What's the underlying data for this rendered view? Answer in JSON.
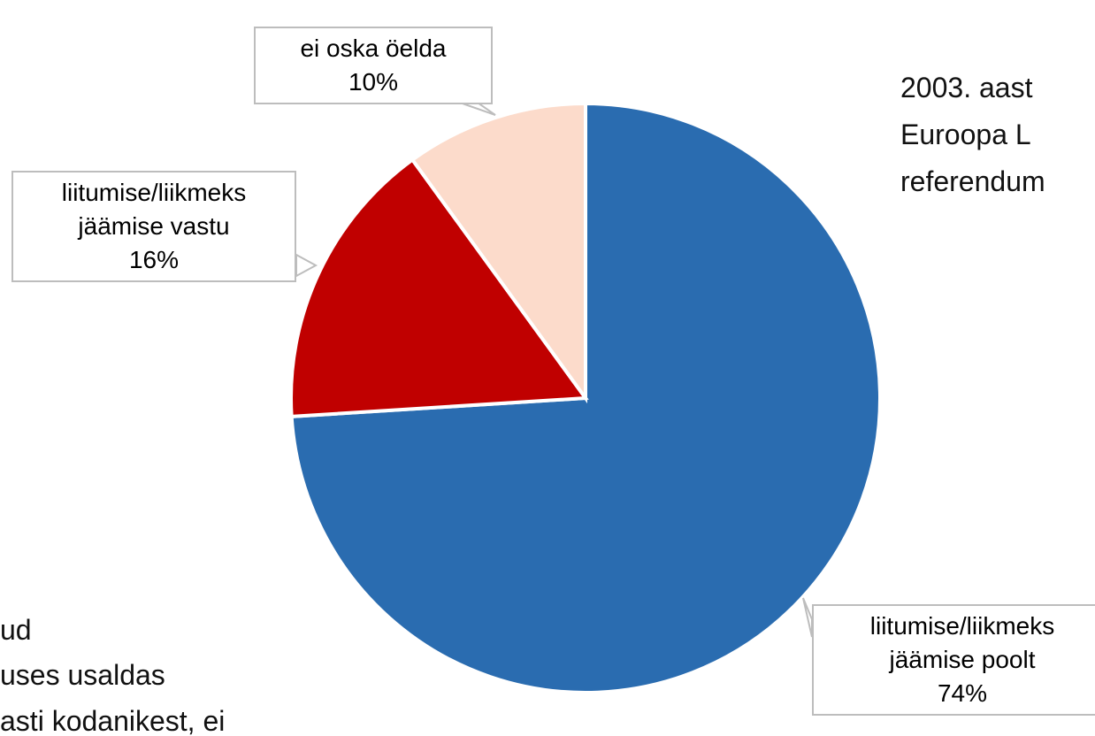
{
  "chart_data": {
    "type": "pie",
    "categories": [
      "liitumise/liikmeks jäämise poolt",
      "liitumise/liikmeks jäämise vastu",
      "ei oska öelda"
    ],
    "values": [
      74,
      16,
      10
    ],
    "value_labels": [
      "74%",
      "16%",
      "10%"
    ],
    "colors": [
      "#2a6cb0",
      "#c00000",
      "#fcdbcb"
    ],
    "annotations": [
      "2003. aast",
      "Euroopa L",
      "referendum",
      "ud",
      "uses usaldas",
      "asti kodanikest, ei"
    ]
  }
}
